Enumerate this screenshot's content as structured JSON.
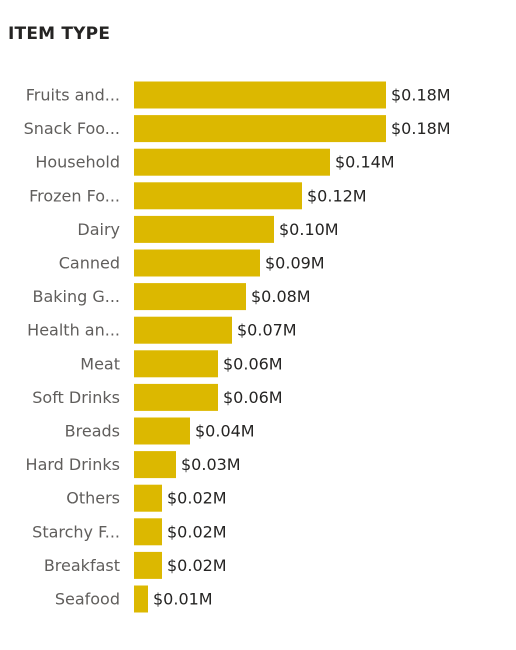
{
  "chart_data": {
    "type": "bar",
    "orientation": "horizontal",
    "title": "ITEM TYPE",
    "categories": [
      "Fruits and...",
      "Snack Foo...",
      "Household",
      "Frozen Fo...",
      "Dairy",
      "Canned",
      "Baking G...",
      "Health an...",
      "Meat",
      "Soft Drinks",
      "Breads",
      "Hard Drinks",
      "Others",
      "Starchy F...",
      "Breakfast",
      "Seafood"
    ],
    "values": [
      0.18,
      0.18,
      0.14,
      0.12,
      0.1,
      0.09,
      0.08,
      0.07,
      0.06,
      0.06,
      0.04,
      0.03,
      0.02,
      0.02,
      0.02,
      0.01
    ],
    "data_labels": [
      "$0.18M",
      "$0.18M",
      "$0.14M",
      "$0.12M",
      "$0.10M",
      "$0.09M",
      "$0.08M",
      "$0.07M",
      "$0.06M",
      "$0.06M",
      "$0.04M",
      "$0.03M",
      "$0.02M",
      "$0.02M",
      "$0.02M",
      "$0.01M"
    ],
    "unit": "$M",
    "xlim": [
      0,
      0.18
    ],
    "grid": false,
    "bar_color": "#dcb800"
  }
}
